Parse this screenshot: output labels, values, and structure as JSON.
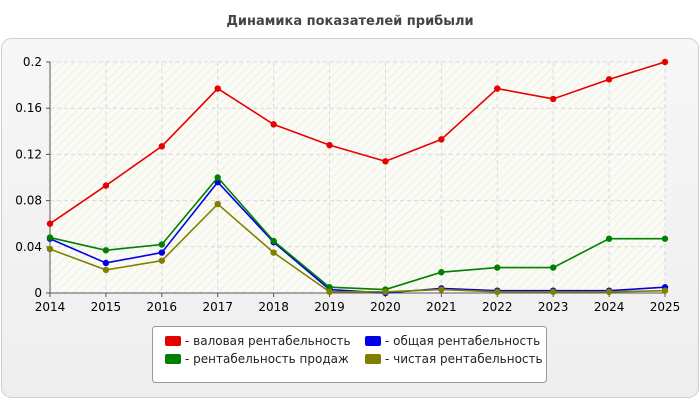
{
  "chart_data": {
    "type": "line",
    "title": "Динамика показателей прибыли",
    "xlabel": "",
    "ylabel": "",
    "categories": [
      "2014",
      "2015",
      "2016",
      "2017",
      "2018",
      "2019",
      "2020",
      "2021",
      "2022",
      "2023",
      "2024",
      "2025"
    ],
    "ylim": [
      0,
      0.2
    ],
    "yticks": [
      0,
      0.04,
      0.08,
      0.12,
      0.16,
      0.2
    ],
    "ytick_labels": [
      "0",
      "0.04",
      "0.08",
      "0.12",
      "0.16",
      "0.2"
    ],
    "grid": true,
    "legend_position": "bottom-center",
    "series": [
      {
        "name": "- валовая рентабельность",
        "color": "#e60000",
        "values": [
          0.06,
          0.093,
          0.127,
          0.177,
          0.146,
          0.128,
          0.114,
          0.133,
          0.177,
          0.168,
          0.185,
          0.2
        ]
      },
      {
        "name": "- общая рентабельность",
        "color": "#0000e6",
        "values": [
          0.047,
          0.026,
          0.035,
          0.096,
          0.044,
          0.003,
          0.0,
          0.004,
          0.002,
          0.002,
          0.002,
          0.005
        ]
      },
      {
        "name": "- рентабельность продаж",
        "color": "#008000",
        "values": [
          0.048,
          0.037,
          0.042,
          0.1,
          0.045,
          0.005,
          0.003,
          0.018,
          0.022,
          0.022,
          0.047,
          0.047
        ]
      },
      {
        "name": "- чистая рентабельность",
        "color": "#808000",
        "values": [
          0.038,
          0.02,
          0.028,
          0.077,
          0.035,
          0.001,
          0.001,
          0.003,
          0.001,
          0.001,
          0.001,
          0.002
        ]
      }
    ]
  }
}
